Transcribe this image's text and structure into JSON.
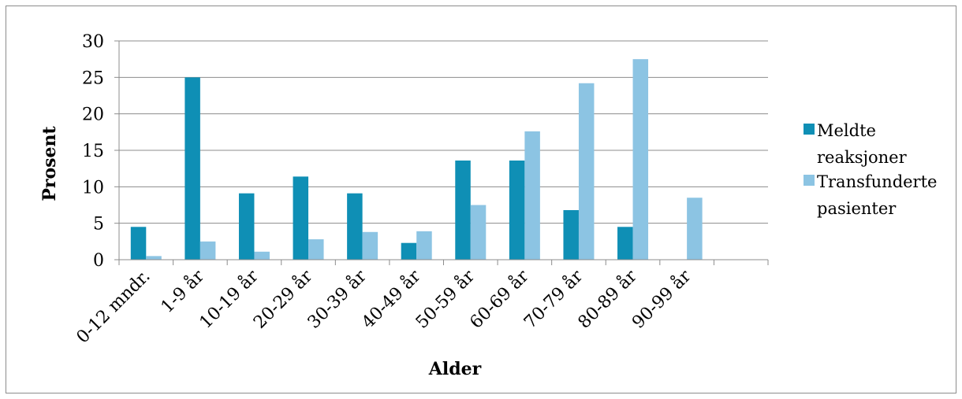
{
  "chart_data": {
    "type": "bar",
    "title": "",
    "xlabel": "Alder",
    "ylabel": "Prosent",
    "ylim": [
      0,
      30
    ],
    "yticks": [
      0,
      5,
      10,
      15,
      20,
      25,
      30
    ],
    "categories": [
      "0-12 mndr.",
      "1-9 år",
      "10-19 år",
      "20-29 år",
      "30-39 år",
      "40-49 år",
      "50-59 år",
      "60-69 år",
      "70-79 år",
      "80-89 år",
      "90-99 år",
      ""
    ],
    "series": [
      {
        "name": "Meldte reaksjoner",
        "legend_lines": [
          "Meldte",
          "reaksjoner"
        ],
        "color": "#0f8fb5",
        "values": [
          4.5,
          25.0,
          9.1,
          11.4,
          9.1,
          2.3,
          13.6,
          13.6,
          6.8,
          4.5,
          0,
          0
        ]
      },
      {
        "name": "Transfunderte pasienter",
        "legend_lines": [
          "Transfunderte",
          "pasienter"
        ],
        "color": "#8cc4e3",
        "values": [
          0.5,
          2.5,
          1.1,
          2.8,
          3.8,
          3.9,
          7.5,
          17.6,
          24.2,
          27.5,
          8.5,
          0
        ]
      }
    ],
    "grid": true,
    "legend_position": "right"
  }
}
